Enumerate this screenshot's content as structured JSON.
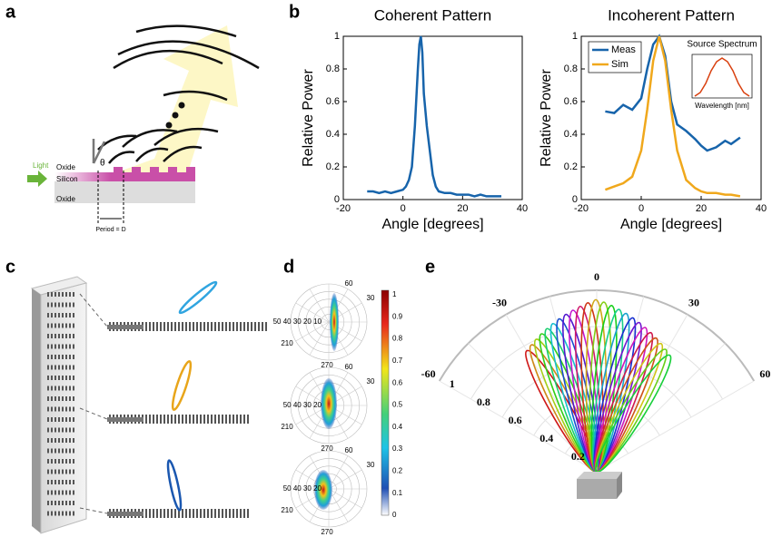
{
  "panels": {
    "a": {
      "label": "a",
      "light": "Light",
      "oxide_top": "Oxide",
      "silicon": "Silicon",
      "oxide_bottom": "Oxide",
      "theta": "θ",
      "period": "Period = D"
    },
    "b": {
      "label": "b"
    },
    "c": {
      "label": "c"
    },
    "d": {
      "label": "d",
      "plots": [
        {
          "labels": [
            "60",
            "30",
            "50 40 30 20 10",
            "210",
            "270"
          ]
        },
        {
          "labels": [
            "60",
            "30",
            "50 40 30 20",
            "210",
            "270"
          ]
        },
        {
          "labels": [
            "60",
            "30",
            "50 40 30 20",
            "210",
            "270"
          ]
        }
      ],
      "colorbar_ticks": [
        "1",
        "0.9",
        "0.8",
        "0.7",
        "0.6",
        "0.5",
        "0.4",
        "0.3",
        "0.2",
        "0.1",
        "0"
      ]
    },
    "e": {
      "label": "e",
      "angle_labels": [
        "-60",
        "-30",
        "0",
        "30",
        "60"
      ],
      "radial_labels": [
        "1",
        "0.8",
        "0.6",
        "0.4",
        "0.2"
      ]
    }
  },
  "chart_data": [
    {
      "type": "line",
      "title": "Coherent Pattern",
      "xlabel": "Angle [degrees]",
      "ylabel": "Relative Power",
      "color": "#1764ab",
      "x": [
        -12,
        -10,
        -8,
        -6,
        -4,
        -2,
        0,
        1,
        2,
        3,
        4,
        5,
        5.5,
        6,
        6.5,
        7,
        8,
        9,
        10,
        11,
        12,
        14,
        16,
        18,
        20,
        22,
        24,
        26,
        28,
        30,
        33
      ],
      "values": [
        0.05,
        0.05,
        0.04,
        0.05,
        0.04,
        0.05,
        0.06,
        0.08,
        0.12,
        0.2,
        0.45,
        0.8,
        0.95,
        1.0,
        0.9,
        0.65,
        0.45,
        0.3,
        0.15,
        0.08,
        0.05,
        0.04,
        0.04,
        0.03,
        0.03,
        0.03,
        0.02,
        0.03,
        0.02,
        0.02,
        0.02
      ],
      "xlim": [
        -20,
        40
      ],
      "xticks": [
        -20,
        0,
        20,
        40
      ],
      "ylim": [
        0,
        1
      ],
      "yticks": [
        0,
        0.2,
        0.4,
        0.6,
        0.8,
        1
      ]
    },
    {
      "type": "line",
      "title": "Incoherent Pattern",
      "xlabel": "Angle [degrees]",
      "ylabel": "Relative Power",
      "legend": "upper left",
      "x": [
        -12,
        -9,
        -6,
        -3,
        0,
        2,
        4,
        6,
        8,
        10,
        12,
        15,
        18,
        20,
        22,
        25,
        28,
        30,
        33
      ],
      "series": [
        {
          "name": "Meas",
          "color": "#1764ab",
          "values": [
            0.54,
            0.53,
            0.58,
            0.55,
            0.62,
            0.8,
            0.95,
            1.0,
            0.88,
            0.6,
            0.46,
            0.42,
            0.37,
            0.33,
            0.3,
            0.32,
            0.36,
            0.34,
            0.38
          ]
        },
        {
          "name": "Sim",
          "color": "#f0a81c",
          "values": [
            0.06,
            0.08,
            0.1,
            0.14,
            0.3,
            0.55,
            0.85,
            1.0,
            0.85,
            0.55,
            0.3,
            0.12,
            0.07,
            0.05,
            0.04,
            0.04,
            0.03,
            0.03,
            0.02
          ]
        }
      ],
      "xlim": [
        -20,
        40
      ],
      "xticks": [
        -20,
        0,
        20,
        40
      ],
      "ylim": [
        0,
        1
      ],
      "yticks": [
        0,
        0.2,
        0.4,
        0.6,
        0.8,
        1
      ]
    },
    {
      "type": "line",
      "title": "Source Spectrum",
      "xlabel": "Wavelength [nm]",
      "color": "#d9400f",
      "x": [
        1500,
        1510,
        1520,
        1530,
        1540,
        1550,
        1560,
        1570,
        1580,
        1590,
        1600
      ],
      "values": [
        0.01,
        0.03,
        0.08,
        0.15,
        0.2,
        0.22,
        0.2,
        0.15,
        0.08,
        0.03,
        0.01
      ],
      "xlim": [
        1495,
        1605
      ],
      "ylim": [
        0,
        0.24
      ]
    }
  ]
}
